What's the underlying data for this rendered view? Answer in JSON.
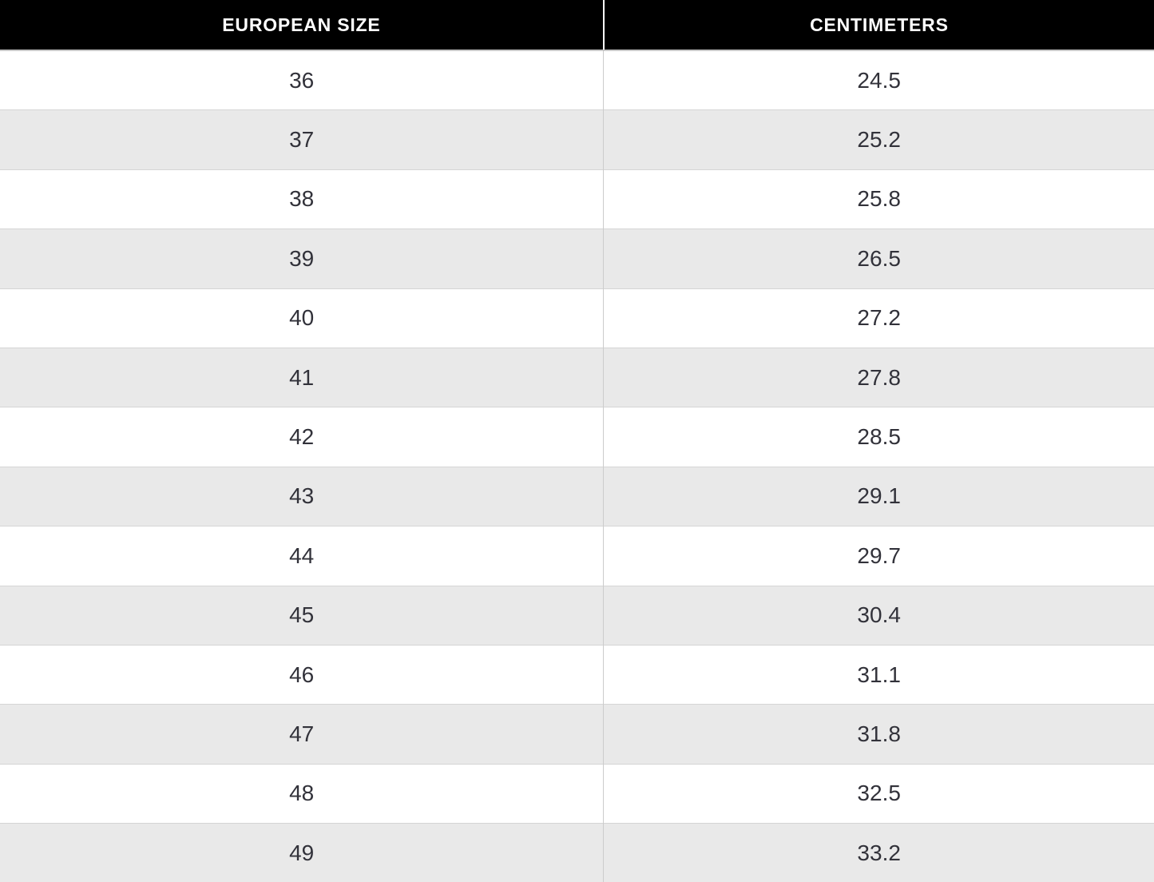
{
  "table": {
    "columns": [
      "EUROPEAN SIZE",
      "CENTIMETERS"
    ],
    "rows": [
      [
        "36",
        "24.5"
      ],
      [
        "37",
        "25.2"
      ],
      [
        "38",
        "25.8"
      ],
      [
        "39",
        "26.5"
      ],
      [
        "40",
        "27.2"
      ],
      [
        "41",
        "27.8"
      ],
      [
        "42",
        "28.5"
      ],
      [
        "43",
        "29.1"
      ],
      [
        "44",
        "29.7"
      ],
      [
        "45",
        "30.4"
      ],
      [
        "46",
        "31.1"
      ],
      [
        "47",
        "31.8"
      ],
      [
        "48",
        "32.5"
      ],
      [
        "49",
        "33.2"
      ]
    ]
  },
  "chart_data": {
    "type": "table",
    "title": "",
    "columns": [
      "EUROPEAN SIZE",
      "CENTIMETERS"
    ],
    "rows": [
      [
        36,
        24.5
      ],
      [
        37,
        25.2
      ],
      [
        38,
        25.8
      ],
      [
        39,
        26.5
      ],
      [
        40,
        27.2
      ],
      [
        41,
        27.8
      ],
      [
        42,
        28.5
      ],
      [
        43,
        29.1
      ],
      [
        44,
        29.7
      ],
      [
        45,
        30.4
      ],
      [
        46,
        31.1
      ],
      [
        47,
        31.8
      ],
      [
        48,
        32.5
      ],
      [
        49,
        33.2
      ]
    ]
  },
  "colors": {
    "header_bg": "#000000",
    "header_text": "#ffffff",
    "row_bg": "#ffffff",
    "row_alt_bg": "#e9e9e9",
    "cell_text": "#32323a",
    "border": "#d5d5d5"
  }
}
